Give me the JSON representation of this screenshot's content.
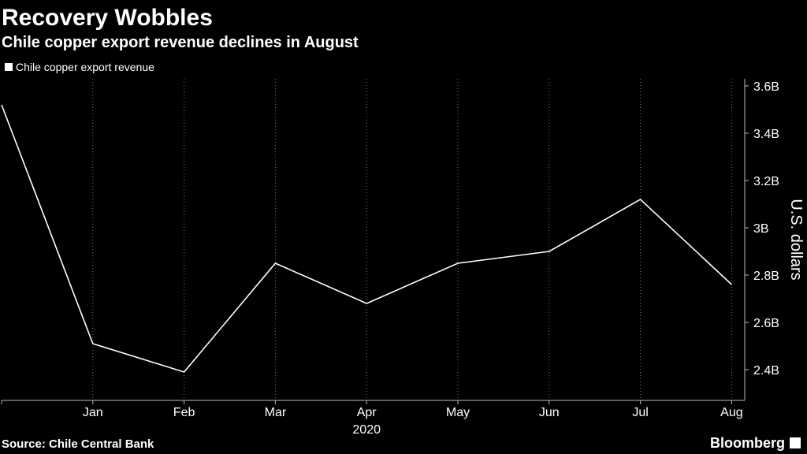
{
  "chart_data": {
    "type": "line",
    "title": "Recovery Wobbles",
    "subtitle": "Chile copper export revenue declines in August",
    "categories": [
      null,
      "Jan",
      "Feb",
      "Mar",
      "Apr",
      "May",
      "Jun",
      "Jul",
      "Aug"
    ],
    "x_annotation": "2020",
    "series": [
      {
        "name": "Chile copper export revenue",
        "color": "#ffffff",
        "values": [
          3.52,
          2.51,
          2.39,
          2.85,
          2.68,
          2.85,
          2.9,
          3.12,
          2.76
        ]
      }
    ],
    "ylim": [
      2.27,
      3.63
    ],
    "yticks": [
      {
        "value": 2.4,
        "label": "2.4B"
      },
      {
        "value": 2.6,
        "label": "2.6B"
      },
      {
        "value": 2.8,
        "label": "2.8B"
      },
      {
        "value": 3,
        "label": "3B"
      },
      {
        "value": 3.2,
        "label": "3.2B"
      },
      {
        "value": 3.4,
        "label": "3.4B"
      },
      {
        "value": 3.6,
        "label": "3.6B"
      }
    ],
    "y_axis_label": "U.S. dollars",
    "y_axis_side": "right",
    "grid": "x",
    "source": "Source: Chile Central Bank",
    "brand": "Bloomberg"
  }
}
